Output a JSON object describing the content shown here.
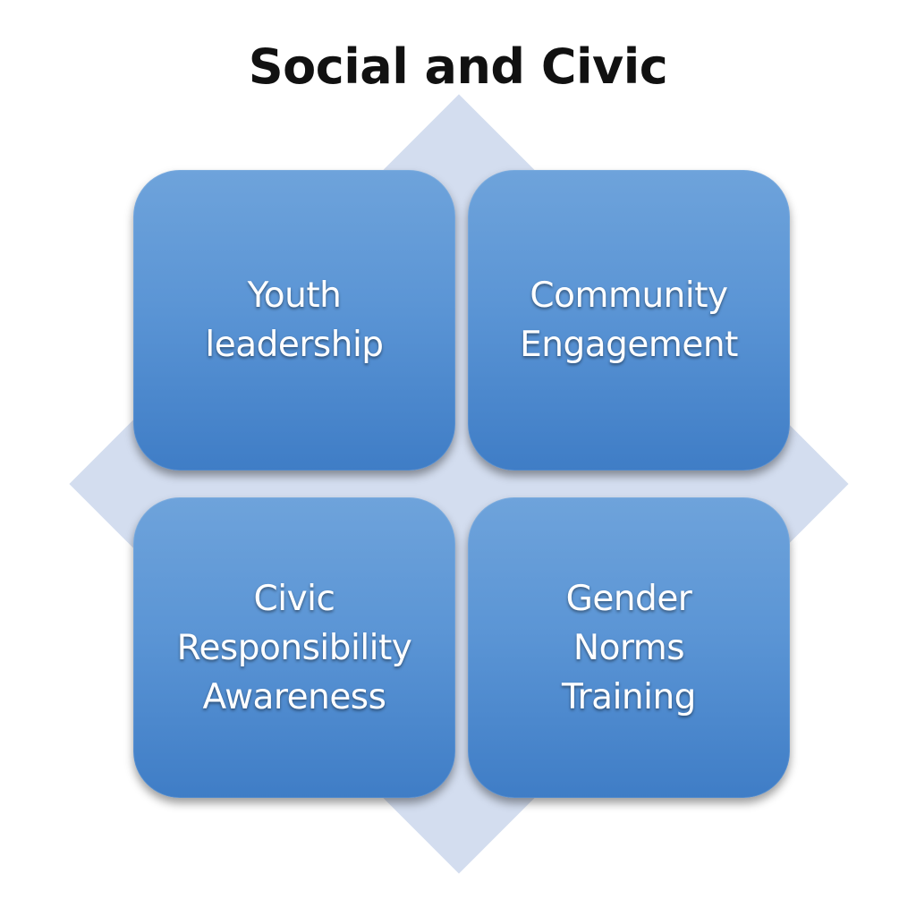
{
  "diagram": {
    "title": "Social and Civic",
    "quadrants": [
      {
        "position": "top-left",
        "label": "Youth\nleadership"
      },
      {
        "position": "top-right",
        "label": "Community\nEngagement"
      },
      {
        "position": "bottom-left",
        "label": "Civic\nResponsibility\nAwareness"
      },
      {
        "position": "bottom-right",
        "label": "Gender\nNorms\nTraining"
      }
    ],
    "colors": {
      "tile_top": "#6ea3db",
      "tile_bottom": "#3f7dc6",
      "diamond": "#d3ddef",
      "title_text": "#111111",
      "tile_text": "#ffffff"
    }
  }
}
